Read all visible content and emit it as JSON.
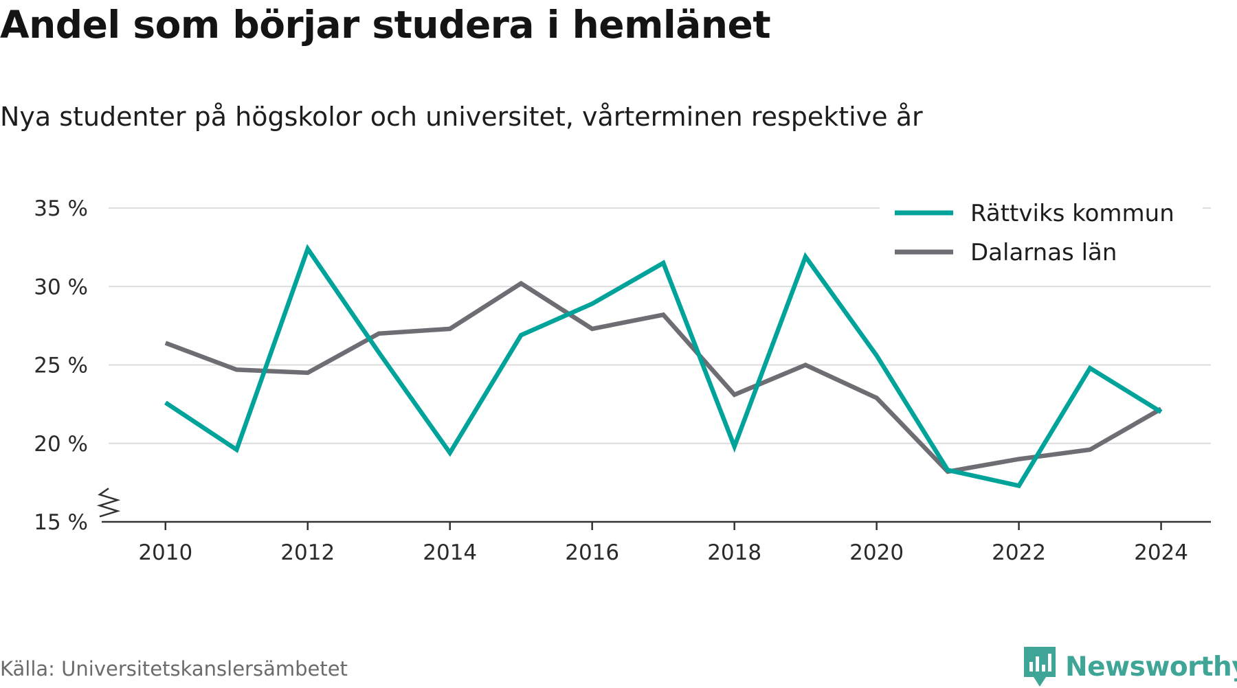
{
  "chart_data": {
    "type": "line",
    "title": "Andel som börjar studera i hemlänet",
    "subtitle": "Nya studenter på högskolor och universitet, vårterminen respektive år",
    "x": [
      2010,
      2011,
      2012,
      2013,
      2014,
      2015,
      2016,
      2017,
      2018,
      2019,
      2020,
      2021,
      2022,
      2023,
      2024
    ],
    "x_tick_labels": [
      "2010",
      "2012",
      "2014",
      "2016",
      "2018",
      "2020",
      "2022",
      "2024"
    ],
    "x_ticks": [
      2010,
      2012,
      2014,
      2016,
      2018,
      2020,
      2022,
      2024
    ],
    "y_ticks": [
      15,
      20,
      25,
      30,
      35
    ],
    "y_tick_labels": [
      "15 %",
      "20 %",
      "25 %",
      "30 %",
      "35 %"
    ],
    "ylim": [
      15,
      35
    ],
    "xlim": [
      2009.2,
      2024.7
    ],
    "y_axis_break": true,
    "grid": true,
    "legend_position": "top-right",
    "series": [
      {
        "name": "Rättviks kommun",
        "color": "#00a39a",
        "values": [
          22.6,
          19.6,
          32.4,
          25.8,
          19.4,
          26.9,
          28.9,
          31.5,
          19.8,
          31.9,
          25.6,
          18.3,
          17.3,
          24.8,
          22.0
        ]
      },
      {
        "name": "Dalarnas län",
        "color": "#6e6d74",
        "values": [
          26.4,
          24.7,
          24.5,
          27.0,
          27.3,
          30.2,
          27.3,
          28.2,
          23.1,
          25.0,
          22.9,
          18.2,
          19.0,
          19.6,
          22.2
        ]
      }
    ]
  },
  "footer": {
    "source": "Källa: Universitetskanslersämbetet",
    "brand": "Newsworthy",
    "brand_color": "#3fa597"
  }
}
